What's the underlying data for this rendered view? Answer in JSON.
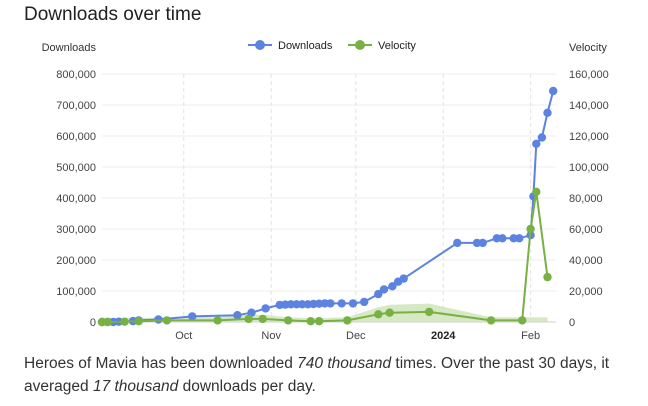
{
  "title": "Downloads over time",
  "summary": {
    "part1": "Heroes of Mavia has been downloaded ",
    "total": "740 thousand",
    "part2": " times. Over the past 30 days, it averaged ",
    "avg": "17 thousand",
    "part3": " downloads per day."
  },
  "chart_data": {
    "type": "line",
    "y_left_label": "Downloads",
    "y_right_label": "Velocity",
    "y_left_ticks": [
      "800,000",
      "700,000",
      "600,000",
      "500,000",
      "400,000",
      "300,000",
      "200,000",
      "100,000",
      "0"
    ],
    "y_right_ticks": [
      "160,000",
      "140,000",
      "120,000",
      "100,000",
      "80,000",
      "60,000",
      "40,000",
      "20,000",
      "0"
    ],
    "ylim_left": [
      0,
      800000
    ],
    "ylim_right": [
      0,
      160000
    ],
    "x_ticks": [
      {
        "label": "Oct",
        "date": "2023-10-01",
        "bold": false
      },
      {
        "label": "Nov",
        "date": "2023-11-01",
        "bold": false
      },
      {
        "label": "Dec",
        "date": "2023-12-01",
        "bold": false
      },
      {
        "label": "2024",
        "date": "2024-01-01",
        "bold": true
      },
      {
        "label": "Feb",
        "date": "2024-02-01",
        "bold": false
      }
    ],
    "xlim": [
      "2023-09-02",
      "2024-02-10"
    ],
    "legend": {
      "position": "top-center"
    },
    "series": [
      {
        "name": "Downloads",
        "color": "#5b83df",
        "axis": "left",
        "points": [
          [
            "2023-09-02",
            0
          ],
          [
            "2023-09-04",
            0
          ],
          [
            "2023-09-06",
            0
          ],
          [
            "2023-09-08",
            1000
          ],
          [
            "2023-09-13",
            3000
          ],
          [
            "2023-09-15",
            5000
          ],
          [
            "2023-09-22",
            8000
          ],
          [
            "2023-10-04",
            18000
          ],
          [
            "2023-10-20",
            22000
          ],
          [
            "2023-10-25",
            30000
          ],
          [
            "2023-10-30",
            44000
          ],
          [
            "2023-11-04",
            55000
          ],
          [
            "2023-11-06",
            56000
          ],
          [
            "2023-11-08",
            57000
          ],
          [
            "2023-11-10",
            57000
          ],
          [
            "2023-11-12",
            57000
          ],
          [
            "2023-11-14",
            57000
          ],
          [
            "2023-11-16",
            58000
          ],
          [
            "2023-11-18",
            59000
          ],
          [
            "2023-11-20",
            60000
          ],
          [
            "2023-11-22",
            60000
          ],
          [
            "2023-11-26",
            60000
          ],
          [
            "2023-11-30",
            60000
          ],
          [
            "2023-12-04",
            65000
          ],
          [
            "2023-12-09",
            90000
          ],
          [
            "2023-12-11",
            105000
          ],
          [
            "2023-12-14",
            115000
          ],
          [
            "2023-12-16",
            130000
          ],
          [
            "2023-12-18",
            140000
          ],
          [
            "2024-01-06",
            255000
          ],
          [
            "2024-01-13",
            255000
          ],
          [
            "2024-01-15",
            255000
          ],
          [
            "2024-01-20",
            270000
          ],
          [
            "2024-01-22",
            270000
          ],
          [
            "2024-01-26",
            270000
          ],
          [
            "2024-01-28",
            270000
          ],
          [
            "2024-02-01",
            280000
          ],
          [
            "2024-02-02",
            405000
          ],
          [
            "2024-02-03",
            575000
          ],
          [
            "2024-02-05",
            595000
          ],
          [
            "2024-02-07",
            675000
          ],
          [
            "2024-02-09",
            745000
          ]
        ]
      },
      {
        "name": "Velocity",
        "color": "#77b043",
        "axis": "right",
        "points": [
          [
            "2023-09-02",
            0
          ],
          [
            "2023-09-04",
            0
          ],
          [
            "2023-09-10",
            200
          ],
          [
            "2023-09-15",
            500
          ],
          [
            "2023-09-25",
            1000
          ],
          [
            "2023-10-13",
            1000
          ],
          [
            "2023-10-24",
            2000
          ],
          [
            "2023-10-29",
            2000
          ],
          [
            "2023-11-07",
            1000
          ],
          [
            "2023-11-15",
            500
          ],
          [
            "2023-11-18",
            500
          ],
          [
            "2023-11-28",
            1000
          ],
          [
            "2023-12-09",
            5000
          ],
          [
            "2023-12-13",
            6000
          ],
          [
            "2023-12-27",
            6500
          ],
          [
            "2024-01-18",
            1000
          ],
          [
            "2024-01-29",
            1000
          ],
          [
            "2024-02-01",
            60000
          ],
          [
            "2024-02-03",
            84000
          ],
          [
            "2024-02-07",
            29000
          ]
        ],
        "band_color": "#c8e2b0"
      }
    ]
  }
}
